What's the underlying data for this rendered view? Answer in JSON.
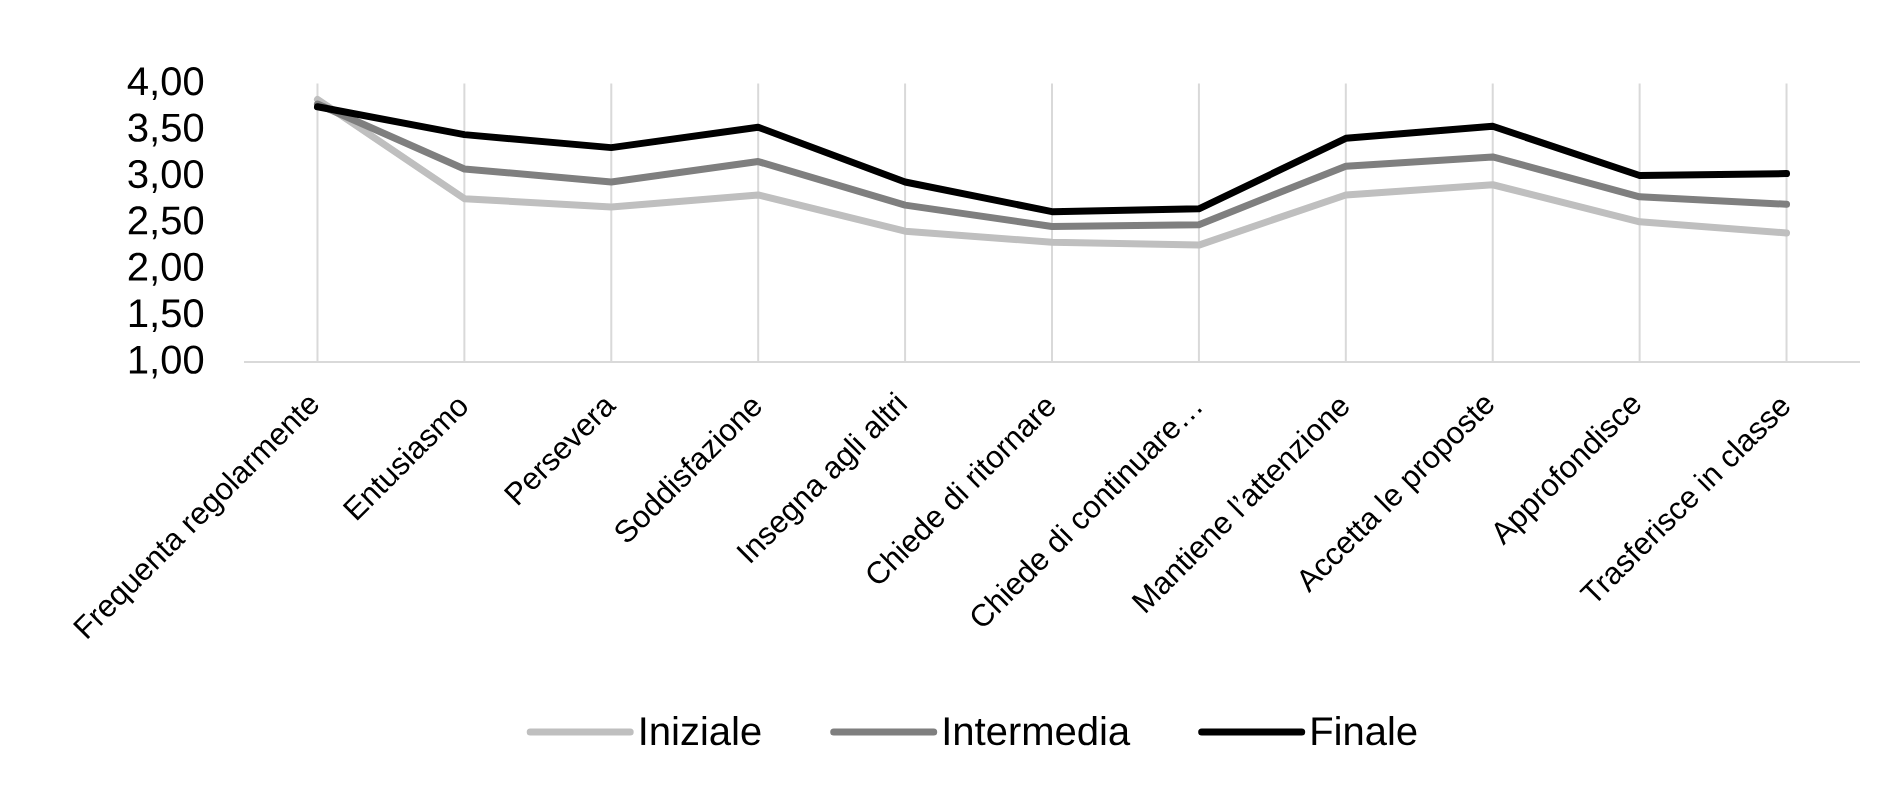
{
  "chart_data": {
    "type": "line",
    "categories": [
      "Frequenta regolarmente",
      "Entusiasmo",
      "Persevera",
      "Soddisfazione",
      "Insegna agli altri",
      "Chiede di ritornare",
      "Chiede di continuare…",
      "Mantiene l’attenzione",
      "Accetta le proposte",
      "Approfondisce",
      "Trasferisce in classe"
    ],
    "series": [
      {
        "name": "Iniziale",
        "color": "#bfbfbf",
        "values": [
          3.83,
          2.76,
          2.67,
          2.8,
          2.41,
          2.29,
          2.26,
          2.8,
          2.91,
          2.51,
          2.39
        ]
      },
      {
        "name": "Intermedia",
        "color": "#7f7f7f",
        "values": [
          3.78,
          3.08,
          2.94,
          3.16,
          2.69,
          2.46,
          2.48,
          3.11,
          3.21,
          2.78,
          2.7
        ]
      },
      {
        "name": "Finale",
        "color": "#000000",
        "values": [
          3.75,
          3.45,
          3.31,
          3.53,
          2.94,
          2.62,
          2.65,
          3.41,
          3.54,
          3.01,
          3.03
        ]
      }
    ],
    "ylim": [
      1,
      4
    ],
    "yticks": [
      {
        "value": 1,
        "label": "1,00"
      },
      {
        "value": 1.5,
        "label": "1,50"
      },
      {
        "value": 2,
        "label": "2,00"
      },
      {
        "value": 2.5,
        "label": "2,50"
      },
      {
        "value": 3,
        "label": "3,00"
      },
      {
        "value": 3.5,
        "label": "3,50"
      },
      {
        "value": 4,
        "label": "4,00"
      }
    ],
    "grid": "x",
    "legend": "bottom",
    "marker": "none",
    "line_style": "solid"
  }
}
